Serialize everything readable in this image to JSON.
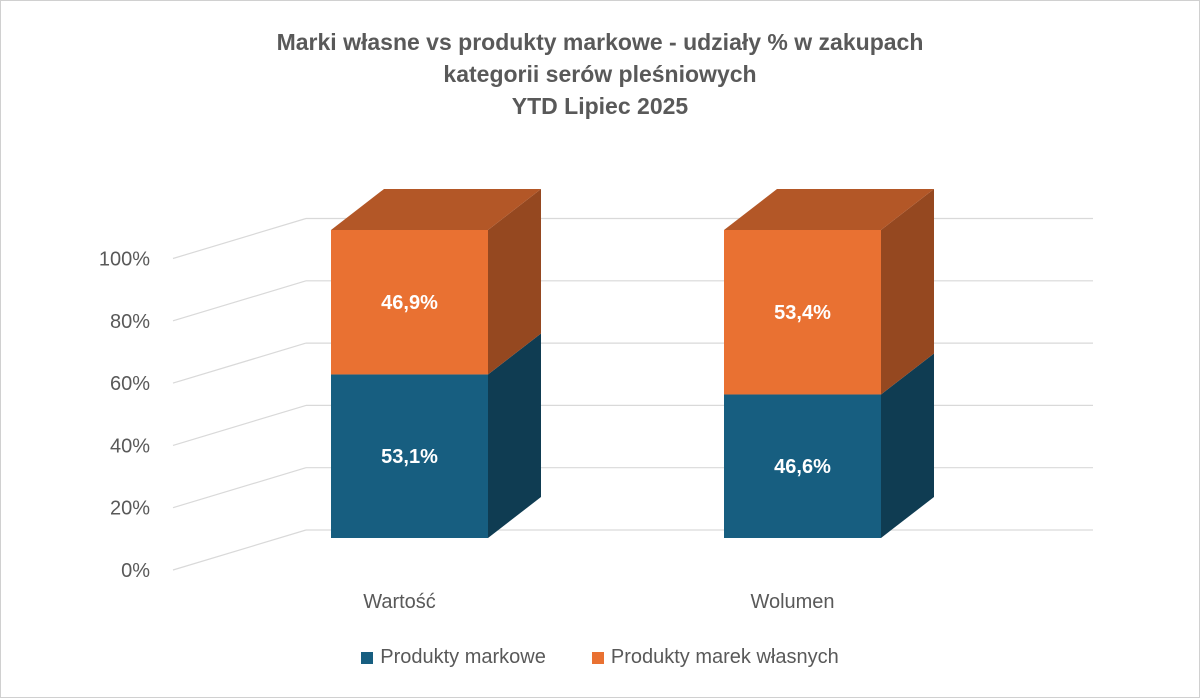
{
  "title": {
    "line1": "Marki własne vs produkty markowe - udziały % w zakupach",
    "line2": "kategorii serów pleśniowych",
    "line3": "YTD Lipiec 2025"
  },
  "colors": {
    "markowe": "#175E80",
    "marek_wlasnych": "#E97132",
    "grid": "#D9D9D9",
    "text": "#595959"
  },
  "chart_data": {
    "type": "bar",
    "stacked": true,
    "three_d": true,
    "categories": [
      "Wartość",
      "Wolumen"
    ],
    "series": [
      {
        "name": "Produkty markowe",
        "values": [
          53.1,
          46.6
        ],
        "labels": [
          "53,1%",
          "46,6%"
        ]
      },
      {
        "name": "Produkty marek własnych",
        "values": [
          46.9,
          53.4
        ],
        "labels": [
          "46,9%",
          "53,4%"
        ]
      }
    ],
    "yticks": [
      "0%",
      "20%",
      "40%",
      "60%",
      "80%",
      "100%"
    ],
    "ylim": [
      0,
      100
    ],
    "grid": true,
    "legend": "bottom"
  }
}
